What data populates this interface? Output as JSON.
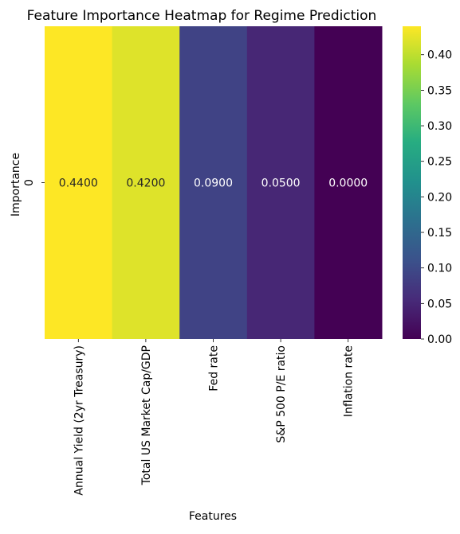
{
  "chart_data": {
    "type": "heatmap",
    "title": "Feature Importance Heatmap for Regime Prediction",
    "xlabel": "Features",
    "ylabel": "Importance",
    "y_categories": [
      "0"
    ],
    "x_categories": [
      "Annual Yield (2yr Treasury)",
      "Total US Market Cap/GDP",
      "Fed rate",
      "S&P 500 P/E ratio",
      "Inflation rate"
    ],
    "values": [
      [
        0.44,
        0.42,
        0.09,
        0.05,
        0.0
      ]
    ],
    "value_labels": [
      "0.4400",
      "0.4200",
      "0.0900",
      "0.0500",
      "0.0000"
    ],
    "colormap": "viridis",
    "colorbar": {
      "range": [
        0.0,
        0.44
      ],
      "ticks": [
        0.0,
        0.05,
        0.1,
        0.15,
        0.2,
        0.25,
        0.3,
        0.35,
        0.4
      ],
      "tick_labels": [
        "0.00",
        "0.05",
        "0.10",
        "0.15",
        "0.20",
        "0.25",
        "0.30",
        "0.35",
        "0.40"
      ]
    },
    "annotation_colors": {
      "dark": "#262626",
      "light": "#ffffff"
    }
  }
}
